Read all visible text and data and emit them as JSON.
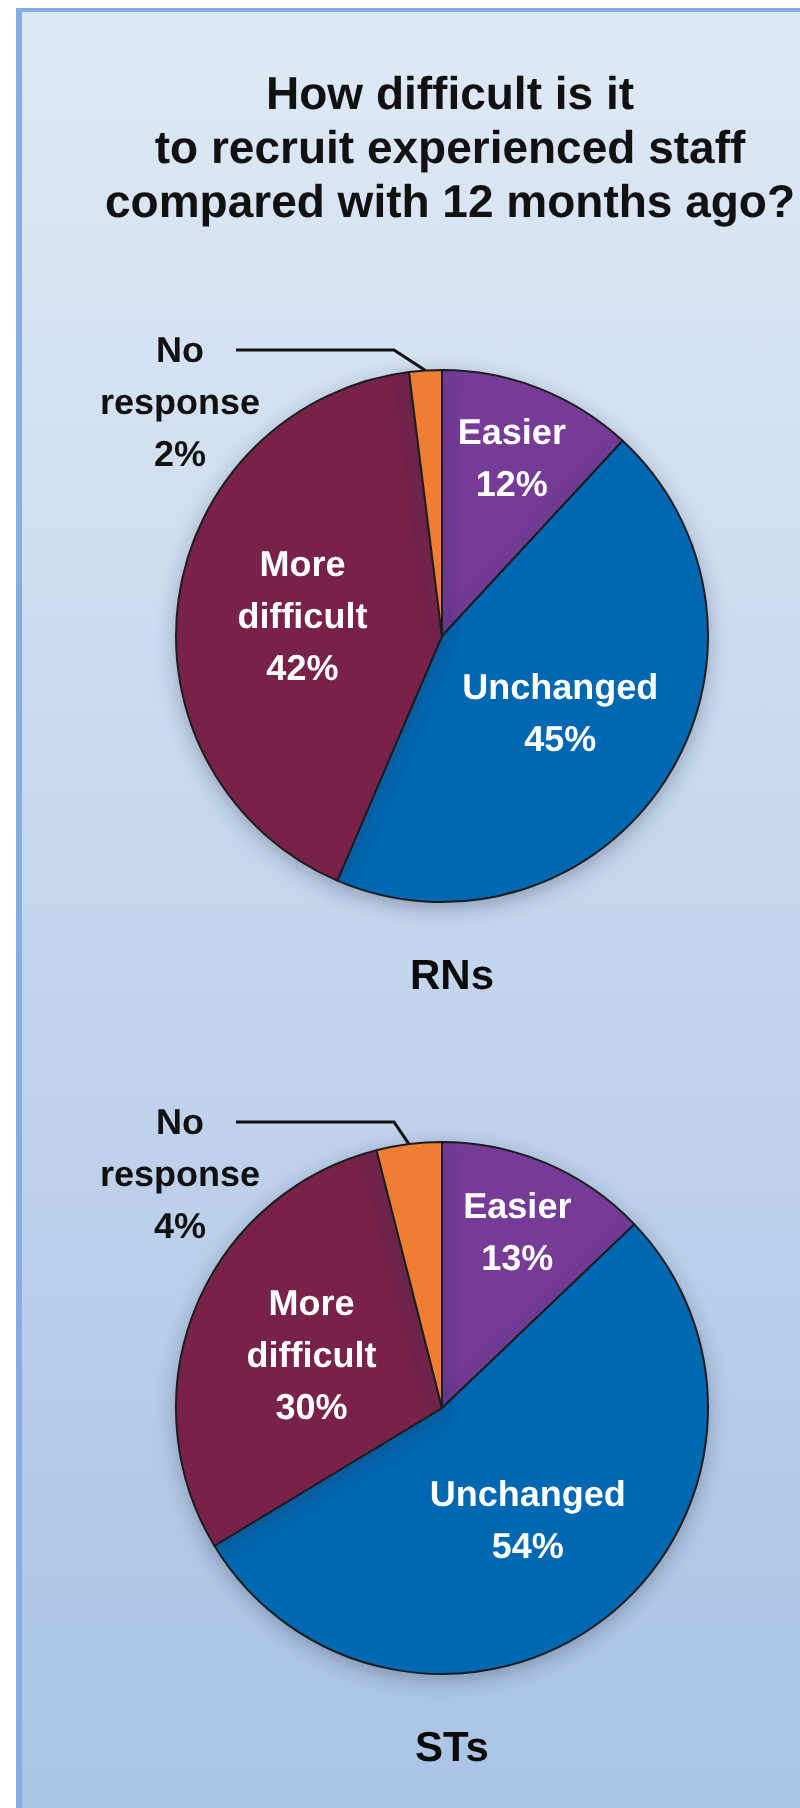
{
  "chart_data": [
    {
      "type": "pie",
      "title": "How difficult is it\nto recruit experienced staff\ncompared with 12 months ago?",
      "xlabel": "RNs",
      "categories": [
        "Easier",
        "Unchanged",
        "More difficult",
        "No response"
      ],
      "values": [
        12,
        45,
        42,
        2
      ],
      "value_labels": [
        "12%",
        "45%",
        "42%",
        "2%"
      ],
      "colors": [
        "#763a97",
        "#0068b3",
        "#78244a",
        "#f07e33"
      ]
    },
    {
      "type": "pie",
      "xlabel": "STs",
      "categories": [
        "Easier",
        "Unchanged",
        "More difficult",
        "No response"
      ],
      "values": [
        13,
        54,
        30,
        4
      ],
      "value_labels": [
        "13%",
        "54%",
        "30%",
        "4%"
      ],
      "colors": [
        "#763a97",
        "#0068b3",
        "#78244a",
        "#f07e33"
      ]
    }
  ]
}
